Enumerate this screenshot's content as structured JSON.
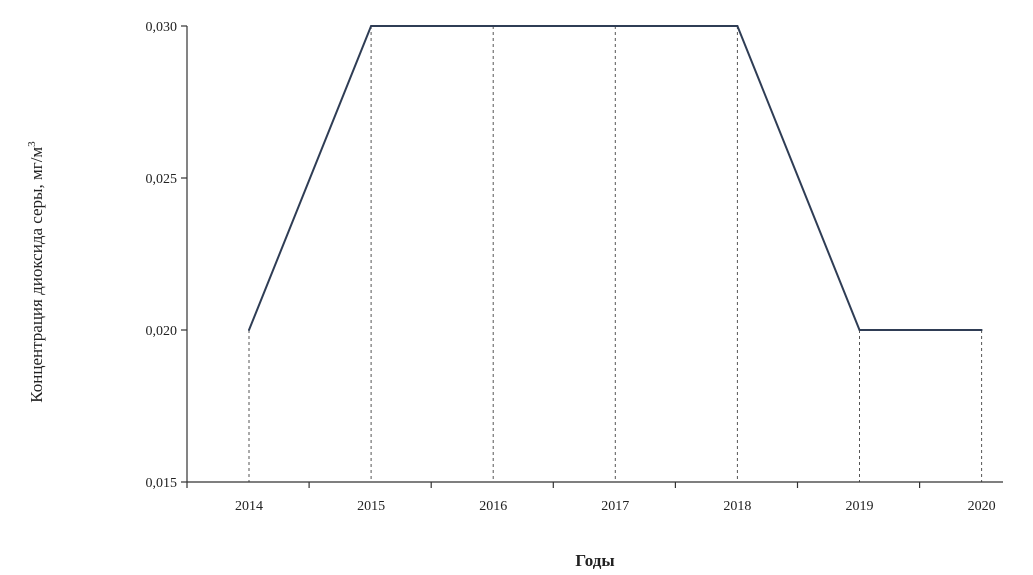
{
  "chart_data": {
    "type": "line",
    "title": "",
    "xlabel": "Годы",
    "ylabel": "Концентрация диоксида серы, мг/м",
    "ylabel_superscript": "3",
    "categories": [
      "2014",
      "2015",
      "2016",
      "2017",
      "2018",
      "2019",
      "2020"
    ],
    "series": [
      {
        "values": [
          0.02,
          0.03,
          0.03,
          0.03,
          0.03,
          0.02,
          0.02
        ]
      }
    ],
    "ylim": [
      0.015,
      0.03
    ],
    "yticks": [
      0.015,
      0.02,
      0.025,
      0.03
    ],
    "ytick_labels": [
      "0,015",
      "0,020",
      "0,025",
      "0,030"
    ],
    "drop_lines": true,
    "grid": false,
    "legend": "none",
    "colors": {
      "line": "#2f3d55",
      "axis": "#333333",
      "drop_line": "#555555"
    }
  }
}
